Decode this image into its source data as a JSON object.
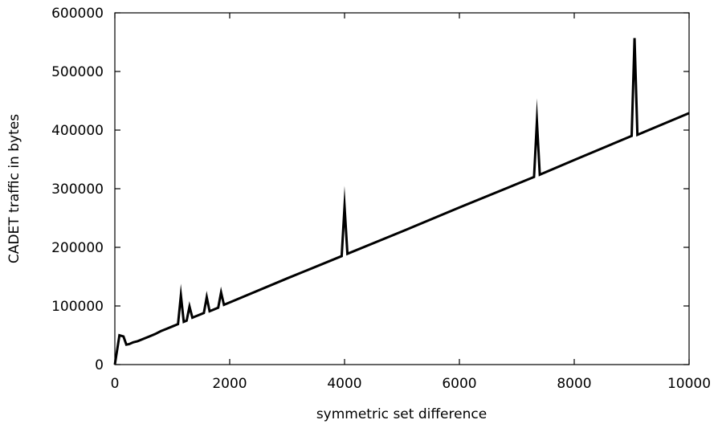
{
  "chart_data": {
    "type": "line",
    "xlabel": "symmetric set difference",
    "ylabel": "CADET traffic in bytes",
    "xlim": [
      0,
      10000
    ],
    "ylim": [
      0,
      600000
    ],
    "x_ticks": [
      0,
      2000,
      4000,
      6000,
      8000,
      10000
    ],
    "y_ticks": [
      0,
      100000,
      200000,
      300000,
      400000,
      500000,
      600000
    ],
    "grid": false,
    "legend": "none",
    "line_color": "#000000",
    "series": [
      {
        "x": [
          0,
          80,
          150,
          200,
          250,
          320,
          400,
          500,
          600,
          700,
          800,
          900,
          1000,
          1100,
          1150,
          1200,
          1250,
          1300,
          1350,
          1400,
          1500,
          1550,
          1600,
          1650,
          1700,
          1800,
          1850,
          1900,
          2000,
          3000,
          3950,
          4000,
          4050,
          5000,
          6000,
          7000,
          7300,
          7350,
          7400,
          8000,
          9000,
          9050,
          9100,
          10000
        ],
        "y": [
          0,
          50000,
          48000,
          34000,
          35000,
          38000,
          40000,
          44000,
          48000,
          52000,
          57000,
          61000,
          65000,
          69000,
          118000,
          73000,
          75000,
          99000,
          80000,
          82000,
          86000,
          88000,
          115000,
          91000,
          93000,
          97000,
          123000,
          102000,
          106000,
          147000,
          185000,
          270000,
          189000,
          227000,
          268000,
          308000,
          320000,
          415000,
          324000,
          349000,
          390000,
          557000,
          392000,
          429000
        ]
      }
    ]
  }
}
